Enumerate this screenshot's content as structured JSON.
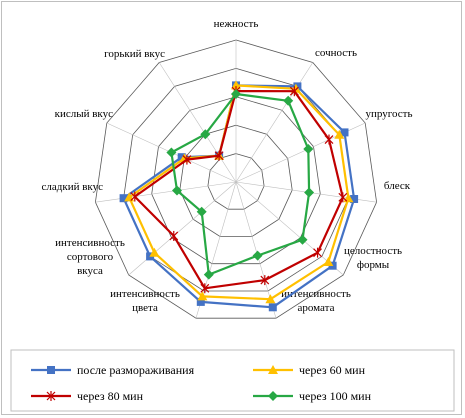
{
  "chart_data": {
    "type": "radar",
    "axes": [
      "нежность",
      "сочность",
      "упругость",
      "блеск",
      "целостность формы",
      "интенсивность аромата",
      "интенсивность цвета",
      "интенсивность сортового вкуса",
      "сладкий вкус",
      "кислый вкус",
      "горький вкус"
    ],
    "rlim": [
      0,
      5
    ],
    "grid": true,
    "legend_position": "bottom",
    "series": [
      {
        "name": "после размораживания",
        "color": "#4472C4",
        "marker": "square",
        "values": [
          3.4,
          4.0,
          4.2,
          4.2,
          4.5,
          4.6,
          4.4,
          4.0,
          4.0,
          2.1,
          1.1
        ]
      },
      {
        "name": "через 60 мин",
        "color": "#FFC000",
        "marker": "triangle",
        "values": [
          3.4,
          3.9,
          4.0,
          4.0,
          4.3,
          4.3,
          4.2,
          3.8,
          3.8,
          2.0,
          1.1
        ]
      },
      {
        "name": "через 80 мин",
        "color": "#C00000",
        "marker": "x",
        "values": [
          3.2,
          3.8,
          3.6,
          3.8,
          3.8,
          3.6,
          3.9,
          2.9,
          3.6,
          1.9,
          1.1
        ]
      },
      {
        "name": "через 100 мин",
        "color": "#27A844",
        "marker": "diamond",
        "values": [
          3.1,
          3.4,
          2.8,
          2.6,
          3.1,
          2.7,
          3.4,
          1.6,
          2.1,
          2.5,
          2.0
        ]
      }
    ]
  }
}
